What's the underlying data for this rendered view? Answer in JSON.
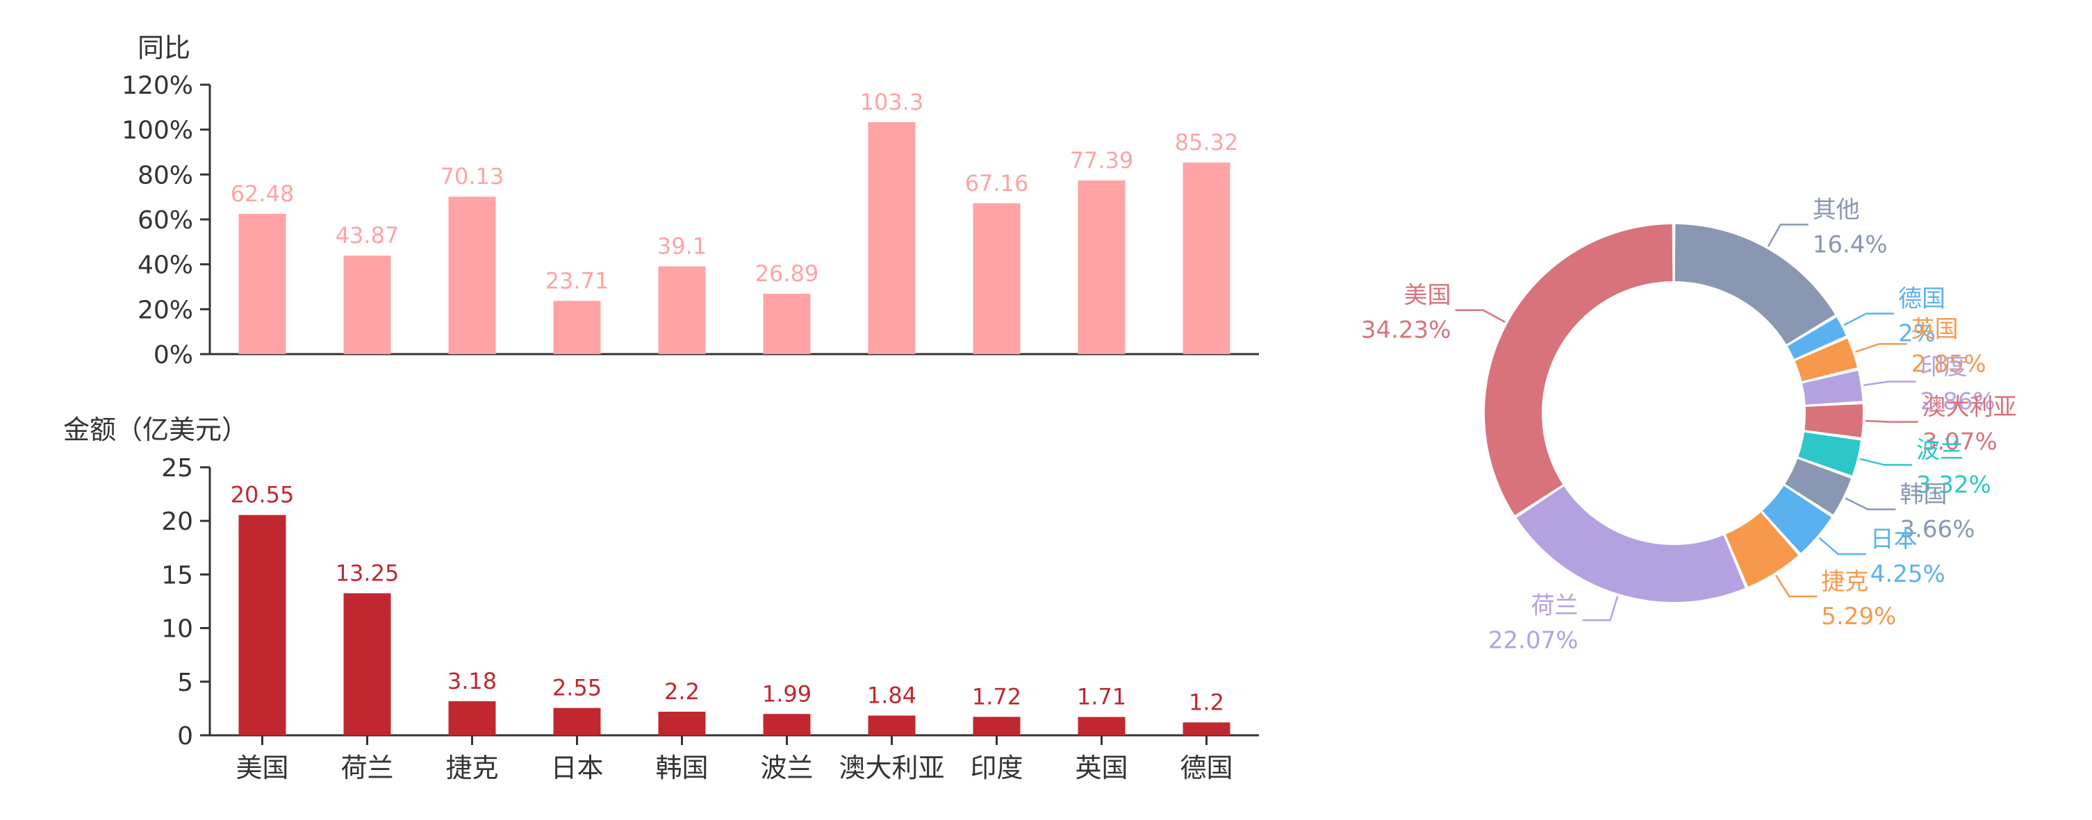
{
  "chart_data": [
    {
      "type": "bar",
      "axis_title": "同比",
      "categories": [
        "美国",
        "荷兰",
        "捷克",
        "日本",
        "韩国",
        "波兰",
        "澳大利亚",
        "印度",
        "英国",
        "德国"
      ],
      "values": [
        62.48,
        43.87,
        70.13,
        23.71,
        39.1,
        26.89,
        103.3,
        67.16,
        77.39,
        85.32
      ],
      "data_labels": [
        "62.48",
        "43.87",
        "70.13",
        "23.71",
        "39.1",
        "26.89",
        "103.3",
        "67.16",
        "77.39",
        "85.32"
      ],
      "ylim": [
        0,
        120
      ],
      "yticks": [
        "0%",
        "20%",
        "40%",
        "60%",
        "80%",
        "100%",
        "120%"
      ],
      "color": "#ffa3a5"
    },
    {
      "type": "bar",
      "axis_title": "金额（亿美元）",
      "categories": [
        "美国",
        "荷兰",
        "捷克",
        "日本",
        "韩国",
        "波兰",
        "澳大利亚",
        "印度",
        "英国",
        "德国"
      ],
      "values": [
        20.55,
        13.25,
        3.18,
        2.55,
        2.2,
        1.99,
        1.84,
        1.72,
        1.71,
        1.2
      ],
      "data_labels": [
        "20.55",
        "13.25",
        "3.18",
        "2.55",
        "2.2",
        "1.99",
        "1.84",
        "1.72",
        "1.71",
        "1.2"
      ],
      "ylim": [
        0,
        25
      ],
      "yticks": [
        "0",
        "5",
        "10",
        "15",
        "20",
        "25"
      ],
      "color": "#c0272f"
    },
    {
      "type": "pie",
      "donut": true,
      "slices": [
        {
          "label": "其他",
          "value": 16.4,
          "value_label": "16.4%",
          "color": "#8a97b2"
        },
        {
          "label": "德国",
          "value": 2,
          "value_label": "2%",
          "color": "#5bb1ef"
        },
        {
          "label": "英国",
          "value": 2.85,
          "value_label": "2.85%",
          "color": "#f6994c"
        },
        {
          "label": "印度",
          "value": 2.86,
          "value_label": "2.86%",
          "color": "#b4a1e0"
        },
        {
          "label": "澳大利亚",
          "value": 3.07,
          "value_label": "3.07%",
          "color": "#d8737b"
        },
        {
          "label": "波兰",
          "value": 3.32,
          "value_label": "3.32%",
          "color": "#2ec7c9"
        },
        {
          "label": "韩国",
          "value": 3.66,
          "value_label": "3.66%",
          "color": "#8a97b2"
        },
        {
          "label": "日本",
          "value": 4.25,
          "value_label": "4.25%",
          "color": "#5bb1ef"
        },
        {
          "label": "捷克",
          "value": 5.29,
          "value_label": "5.29%",
          "color": "#f6994c"
        },
        {
          "label": "荷兰",
          "value": 22.07,
          "value_label": "22.07%",
          "color": "#b4a1e0"
        },
        {
          "label": "美国",
          "value": 34.23,
          "value_label": "34.23%",
          "color": "#d8737b"
        }
      ]
    }
  ]
}
